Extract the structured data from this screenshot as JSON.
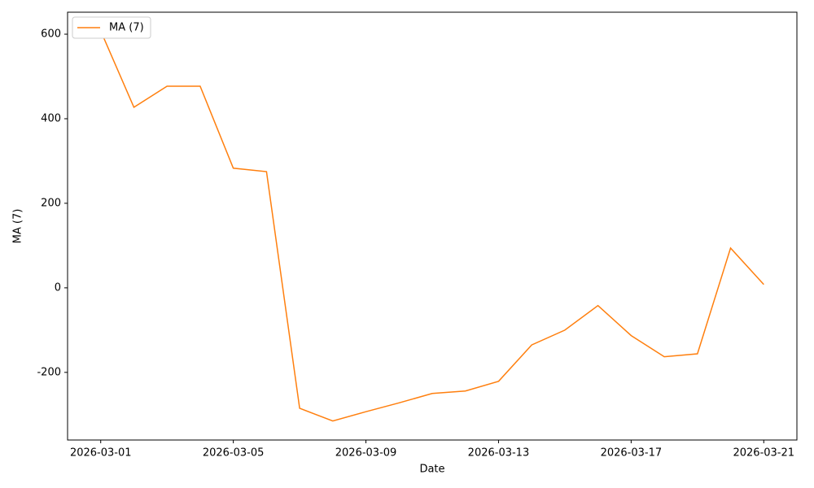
{
  "chart_data": {
    "type": "line",
    "xlabel": "Date",
    "ylabel": "MA (7)",
    "x": [
      "2026-03-01",
      "2026-03-02",
      "2026-03-03",
      "2026-03-04",
      "2026-03-05",
      "2026-03-06",
      "2026-03-07",
      "2026-03-08",
      "2026-03-09",
      "2026-03-10",
      "2026-03-11",
      "2026-03-12",
      "2026-03-13",
      "2026-03-14",
      "2026-03-15",
      "2026-03-16",
      "2026-03-17",
      "2026-03-18",
      "2026-03-19",
      "2026-03-20",
      "2026-03-21"
    ],
    "series": [
      {
        "name": "MA (7)",
        "color": "#ff7f0e",
        "values": [
          608,
          427,
          477,
          477,
          283,
          275,
          -285,
          -315,
          -293,
          -272,
          -250,
          -244,
          -221,
          -135,
          -100,
          -42,
          -113,
          -163,
          -156,
          94,
          8
        ]
      }
    ],
    "xlim": [
      "2026-02-28",
      "2026-03-22"
    ],
    "xticks": [
      "2026-03-01",
      "2026-03-05",
      "2026-03-09",
      "2026-03-13",
      "2026-03-17",
      "2026-03-21"
    ],
    "ylim": [
      -360,
      652
    ],
    "yticks": [
      -200,
      0,
      200,
      400,
      600
    ],
    "grid": false,
    "legend": "upper-left"
  }
}
